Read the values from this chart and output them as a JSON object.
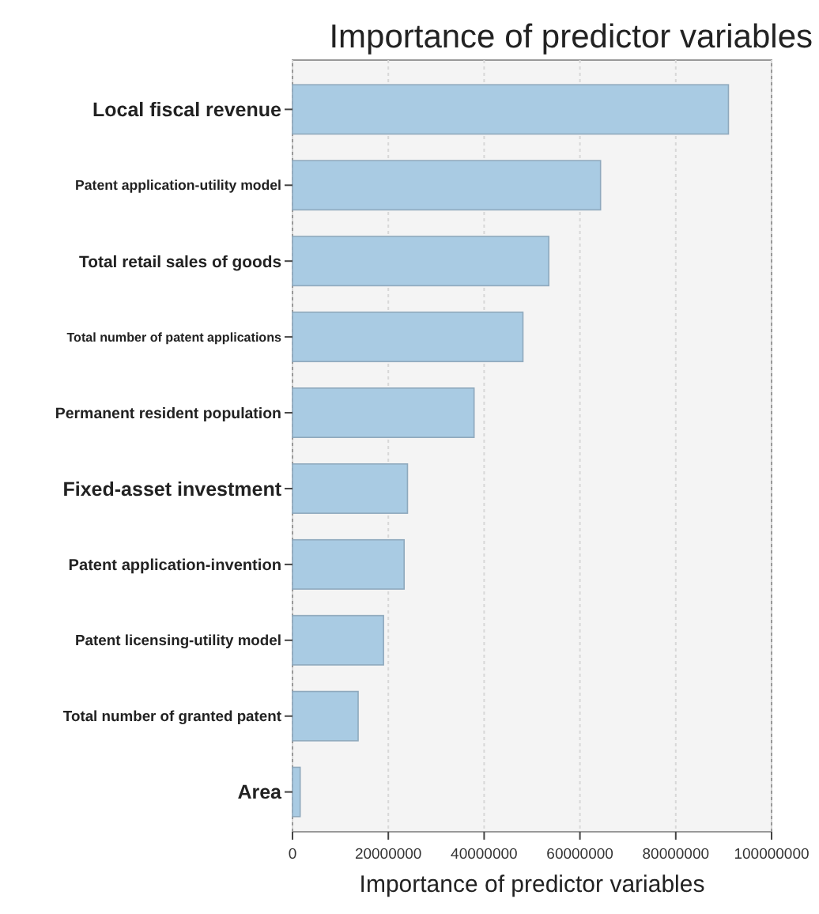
{
  "chart_data": {
    "type": "bar",
    "orientation": "horizontal",
    "title": "Importance of predictor variables",
    "xlabel": "Importance of predictor variables",
    "categories": [
      "Local fiscal revenue",
      "Patent application-utility model",
      "Total retail sales of goods",
      "Total number of patent applications",
      "Permanent resident population",
      "Fixed-asset investment",
      "Patent application-invention",
      "Patent licensing-utility model",
      "Total number of granted patent",
      "Area"
    ],
    "values": [
      91000000,
      64300000,
      53500000,
      48100000,
      37900000,
      24000000,
      23300000,
      19000000,
      13700000,
      1600000
    ],
    "color": "#a9cbe3",
    "xlim": [
      0,
      100000000
    ],
    "xticks": [
      0,
      20000000,
      40000000,
      60000000,
      80000000,
      100000000
    ],
    "grid": "x"
  }
}
